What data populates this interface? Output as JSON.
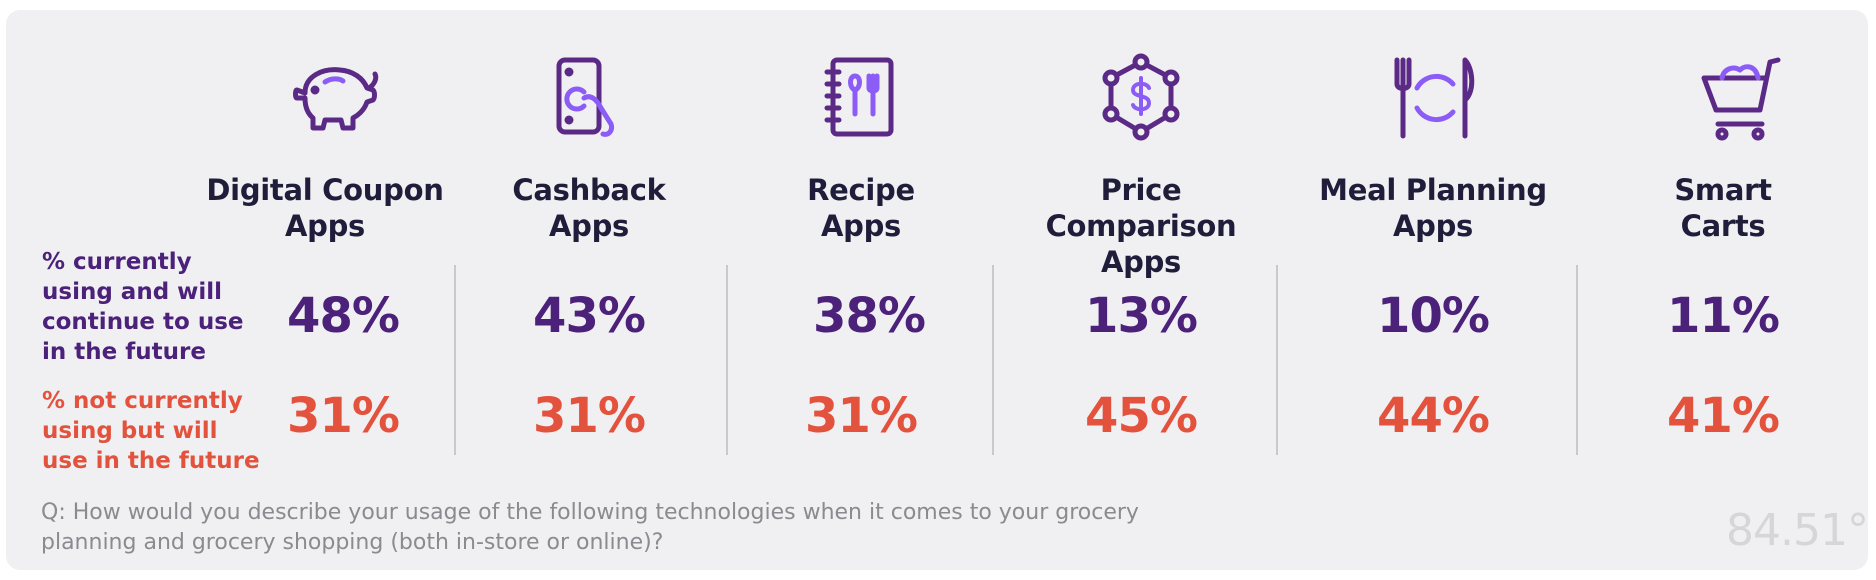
{
  "row_labels": {
    "current": "% currently using and will continue to use in the future",
    "future": "% not currently using but will use in the future"
  },
  "columns": [
    {
      "title_line1": "Digital Coupon",
      "title_line2": "Apps",
      "current": "48%",
      "future": "31%",
      "icon": "piggy-bank-icon"
    },
    {
      "title_line1": "Cashback",
      "title_line2": "Apps",
      "current": "43%",
      "future": "31%",
      "icon": "phone-payment-icon"
    },
    {
      "title_line1": "Recipe",
      "title_line2": "Apps",
      "current": "38%",
      "future": "31%",
      "icon": "recipe-book-icon"
    },
    {
      "title_line1": "Price Comparison",
      "title_line2": "Apps",
      "current": "13%",
      "future": "45%",
      "icon": "price-network-icon"
    },
    {
      "title_line1": "Meal Planning",
      "title_line2": "Apps",
      "current": "10%",
      "future": "44%",
      "icon": "fork-plate-knife-icon"
    },
    {
      "title_line1": "Smart",
      "title_line2": "Carts",
      "current": "11%",
      "future": "41%",
      "icon": "shopping-cart-icon"
    }
  ],
  "question": "Q: How would you describe your usage of the following technologies when it comes to your grocery planning and grocery shopping (both in-store or online)?",
  "logo": "84.51°",
  "colors": {
    "purple": "#4b217a",
    "coral": "#e2523d",
    "icon_purple": "#5b2a86",
    "icon_light": "#8b5cf6"
  },
  "chart_data": {
    "type": "table",
    "title": "",
    "categories": [
      "Digital Coupon Apps",
      "Cashback Apps",
      "Recipe Apps",
      "Price Comparison Apps",
      "Meal Planning Apps",
      "Smart Carts"
    ],
    "series": [
      {
        "name": "% currently using and will continue to use in the future",
        "values": [
          48,
          43,
          38,
          13,
          10,
          11
        ]
      },
      {
        "name": "% not currently using but will use in the future",
        "values": [
          31,
          31,
          31,
          45,
          44,
          41
        ]
      }
    ],
    "unit": "%"
  }
}
